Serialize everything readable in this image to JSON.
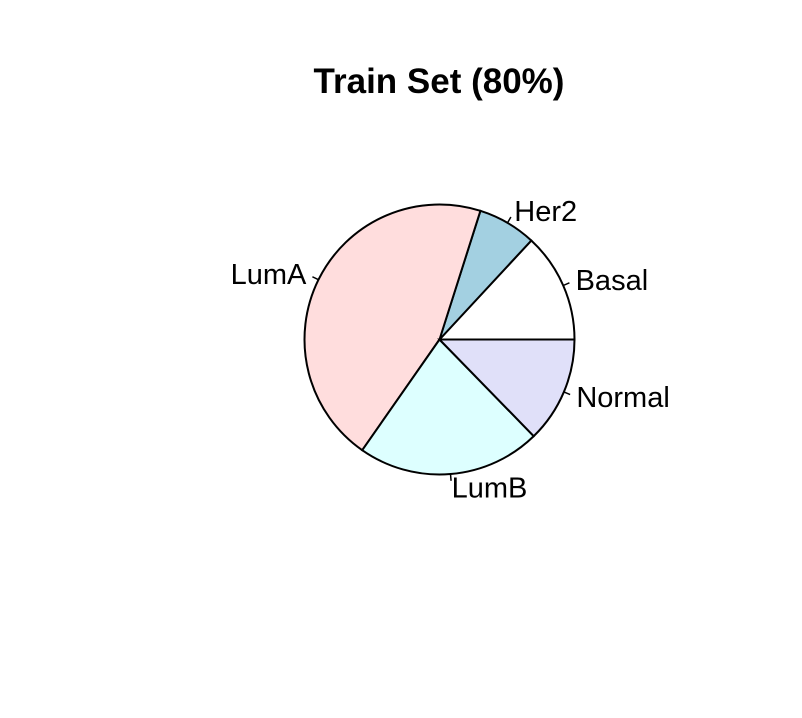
{
  "chart_data": {
    "type": "pie",
    "title": "Train Set (80%)",
    "slices": [
      {
        "label": "Basal",
        "value": 13.1,
        "color": "#ffffff"
      },
      {
        "label": "Her2",
        "value": 7.0,
        "color": "#a3d0e1"
      },
      {
        "label": "LumA",
        "value": 45.2,
        "color": "#ffdddd"
      },
      {
        "label": "LumB",
        "value": 22.0,
        "color": "#ddffff"
      },
      {
        "label": "Normal",
        "value": 12.7,
        "color": "#e0e0f9"
      }
    ],
    "direction": "counterclockwise",
    "start": "east"
  }
}
